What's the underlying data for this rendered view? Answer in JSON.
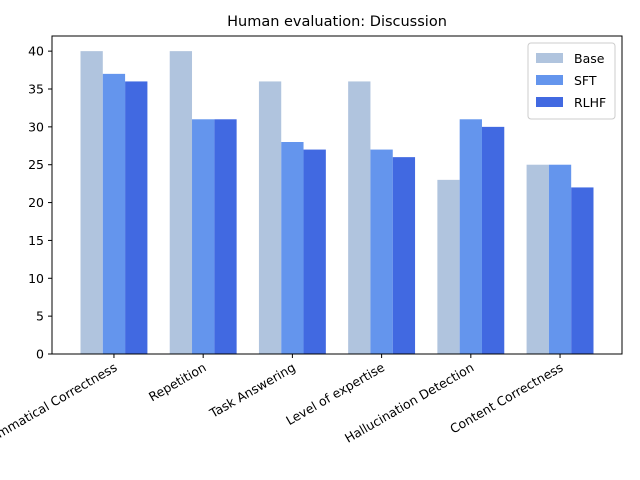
{
  "chart_data": {
    "type": "bar",
    "title": "Human evaluation: Discussion",
    "xlabel": "",
    "ylabel": "",
    "categories": [
      "Grammatical Correctness",
      "Repetition",
      "Task Answering",
      "Level of expertise",
      "Hallucination Detection",
      "Content Correctness"
    ],
    "series": [
      {
        "name": "Base",
        "color": "#b0c4de",
        "values": [
          40,
          40,
          36,
          36,
          23,
          25
        ]
      },
      {
        "name": "SFT",
        "color": "#6495ed",
        "values": [
          37,
          31,
          28,
          27,
          31,
          25
        ]
      },
      {
        "name": "RLHF",
        "color": "#4169e1",
        "values": [
          36,
          31,
          27,
          26,
          30,
          22
        ]
      }
    ],
    "ylim": [
      0,
      42
    ],
    "yticks": [
      0,
      5,
      10,
      15,
      20,
      25,
      30,
      35,
      40
    ],
    "grid": false,
    "legend_position": "top-right",
    "xtick_rotation": 30
  }
}
